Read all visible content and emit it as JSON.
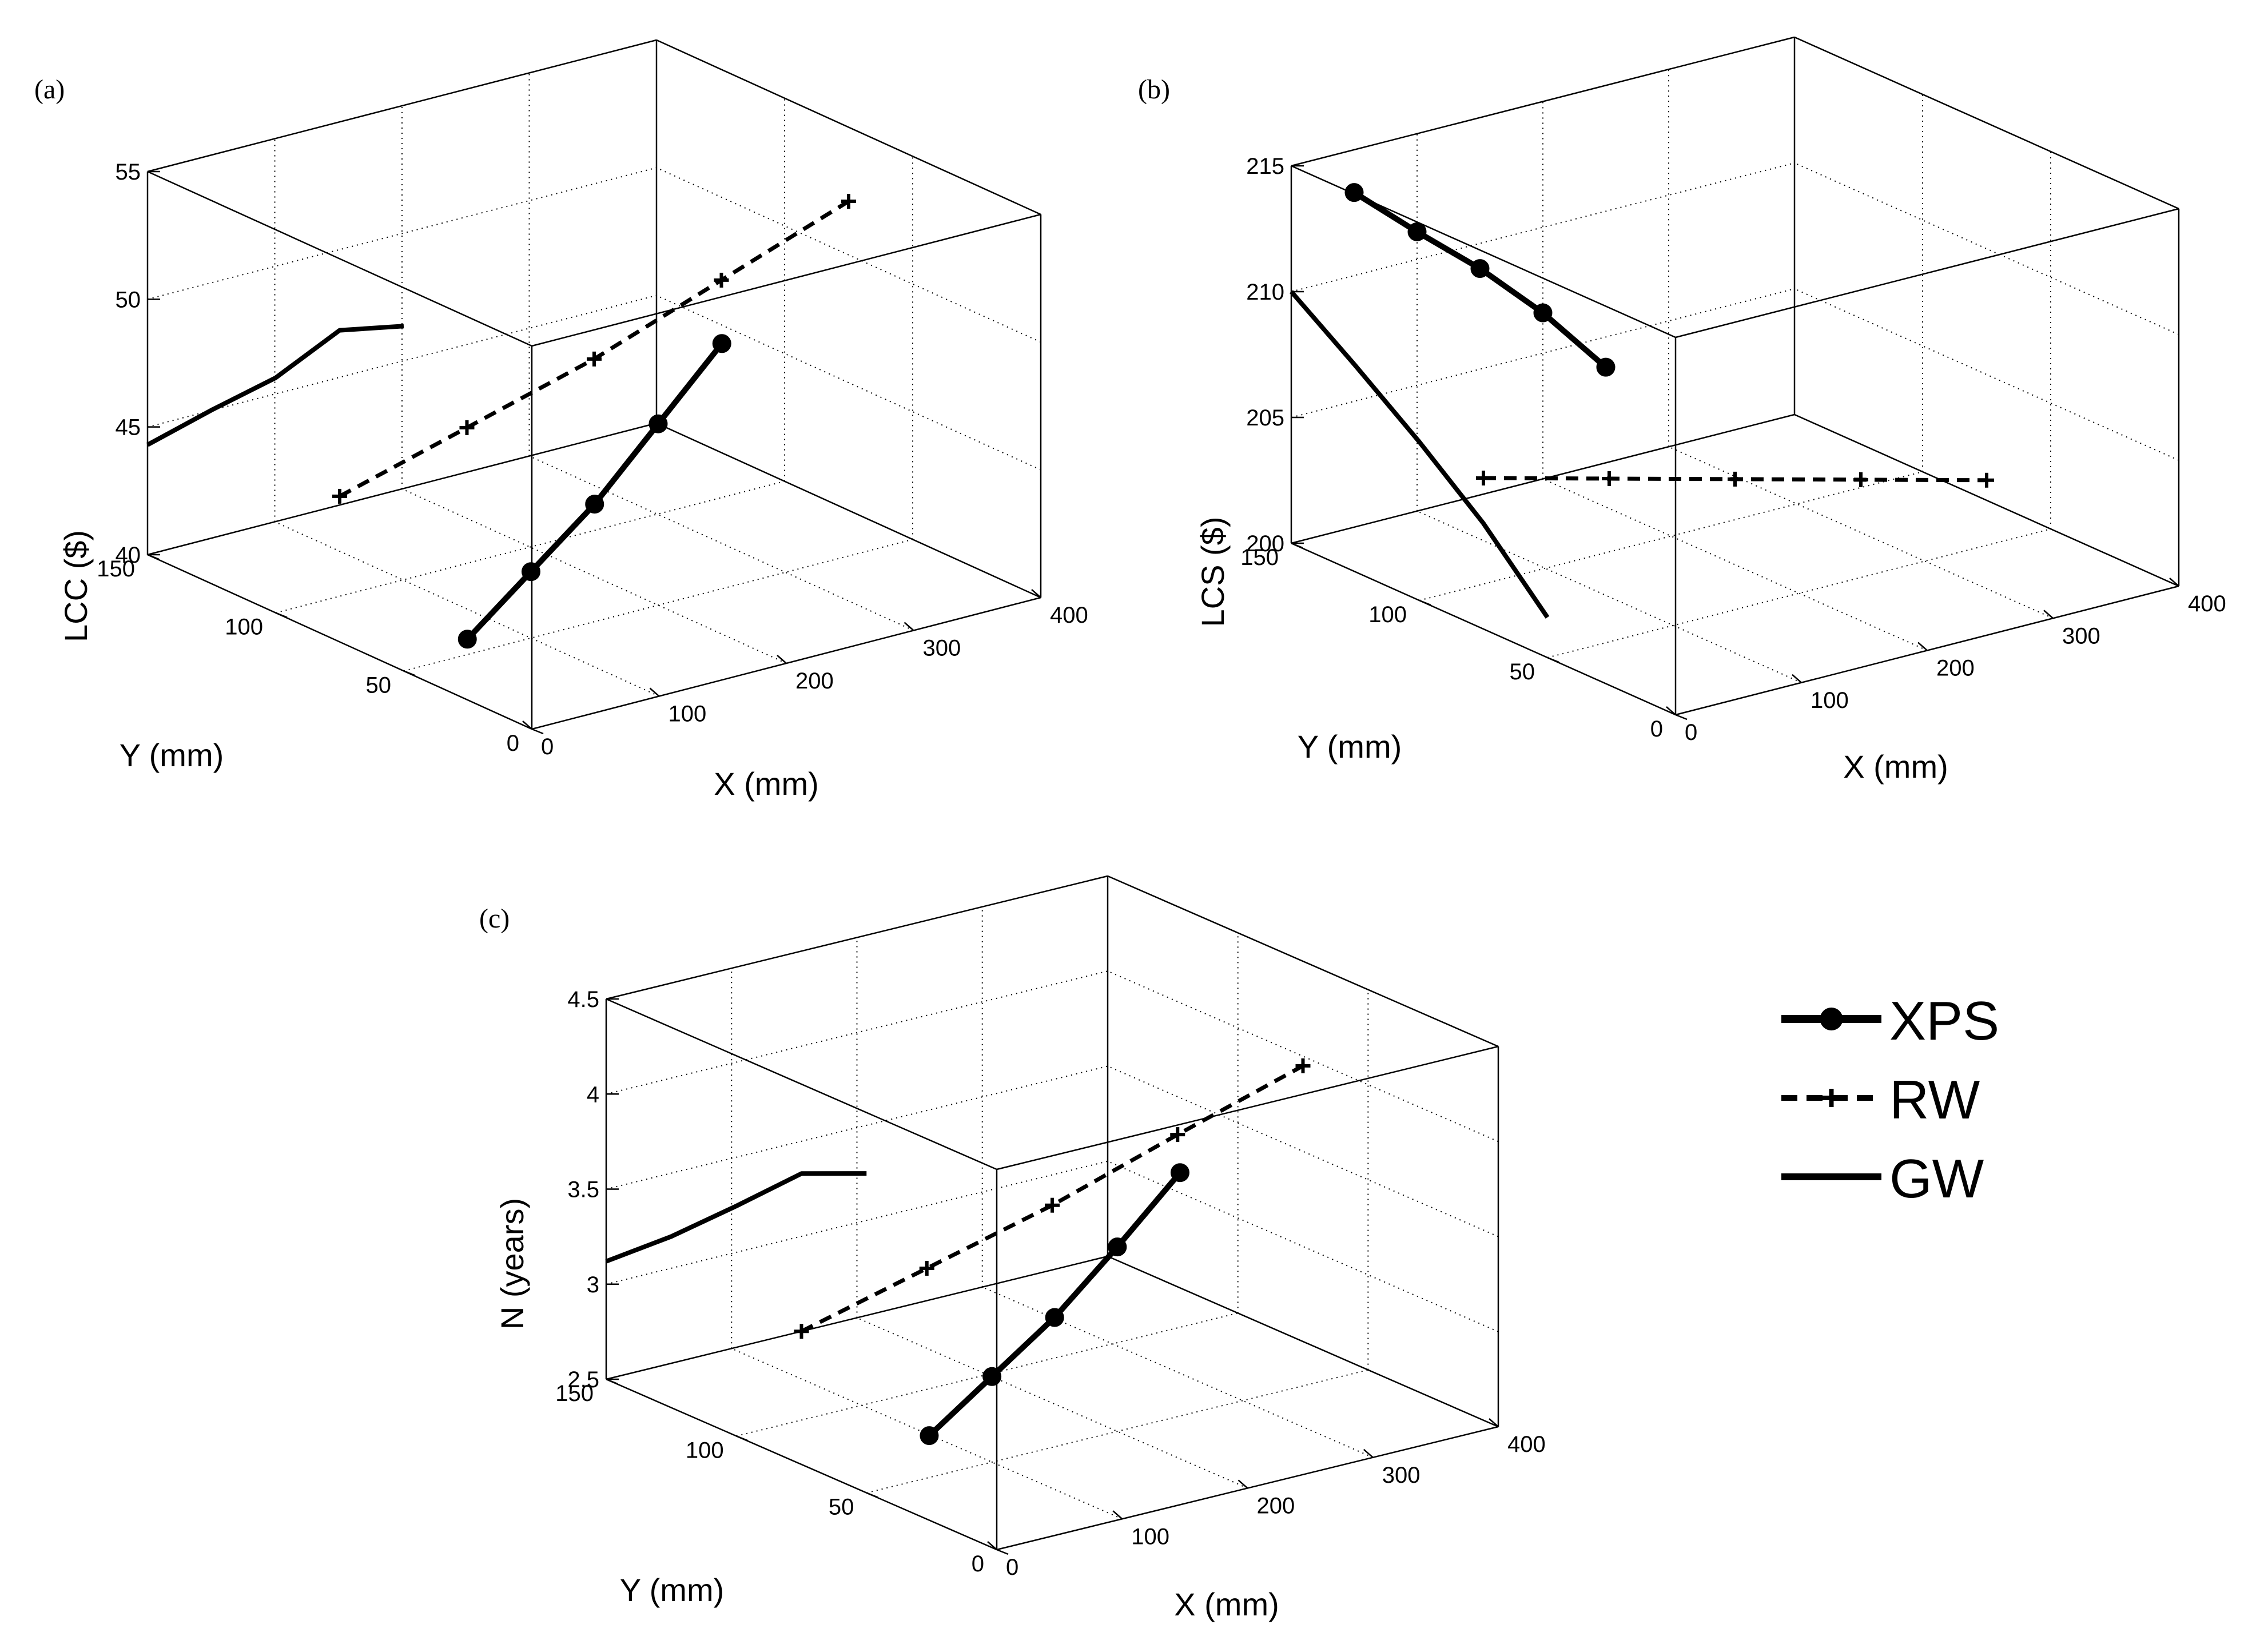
{
  "chart_data": [
    {
      "type": "line3d",
      "panel_label": "(a)",
      "xlabel": "X (mm)",
      "ylabel": "Y (mm)",
      "zlabel": "LCC ($)",
      "xlim": [
        0,
        400
      ],
      "ylim": [
        0,
        150
      ],
      "zlim": [
        40,
        55
      ],
      "xticks": [
        0,
        100,
        200,
        300,
        400
      ],
      "yticks": [
        0,
        50,
        100,
        150
      ],
      "zticks": [
        40,
        45,
        50,
        55
      ],
      "grid": true,
      "series": [
        {
          "name": "XPS",
          "style": "solid-circle",
          "points": [
            [
              50,
              50,
              40.6
            ],
            [
              100,
              50,
              42.6
            ],
            [
              150,
              50,
              44.6
            ],
            [
              200,
              50,
              47.1
            ],
            [
              250,
              50,
              49.6
            ]
          ]
        },
        {
          "name": "RW",
          "style": "dashed-plus",
          "points": [
            [
              0,
              75,
              45.7
            ],
            [
              100,
              75,
              47.1
            ],
            [
              200,
              75,
              48.5
            ],
            [
              300,
              75,
              50.3
            ],
            [
              400,
              75,
              52.1
            ]
          ]
        },
        {
          "name": "GW",
          "style": "solid",
          "points": [
            [
              0,
              150,
              44.3
            ],
            [
              0,
              125,
              46.8
            ],
            [
              0,
              100,
              49.2
            ],
            [
              0,
              75,
              52.2
            ],
            [
              0,
              50,
              53.5
            ]
          ]
        }
      ]
    },
    {
      "type": "line3d",
      "panel_label": "(b)",
      "xlabel": "X (mm)",
      "ylabel": "Y (mm)",
      "zlabel": "LCS ($)",
      "xlim": [
        0,
        400
      ],
      "ylim": [
        0,
        150
      ],
      "zlim": [
        200,
        215
      ],
      "xticks": [
        0,
        100,
        200,
        300,
        400
      ],
      "yticks": [
        0,
        50,
        100,
        150
      ],
      "zticks": [
        200,
        205,
        210,
        215
      ],
      "grid": true,
      "series": [
        {
          "name": "XPS",
          "style": "solid-circle",
          "points": [
            [
              50,
              150,
              213.3
            ],
            [
              100,
              150,
              211.1
            ],
            [
              150,
              150,
              209.0
            ],
            [
              200,
              150,
              206.6
            ],
            [
              250,
              150,
              203.8
            ]
          ]
        },
        {
          "name": "RW",
          "style": "dashed-plus",
          "points": [
            [
              0,
              75,
              206.0
            ],
            [
              100,
              75,
              204.7
            ],
            [
              200,
              75,
              203.4
            ],
            [
              300,
              75,
              202.1
            ],
            [
              400,
              75,
              200.8
            ]
          ]
        },
        {
          "name": "GW",
          "style": "solid",
          "points": [
            [
              0,
              150,
              210.0
            ],
            [
              0,
              125,
              208.2
            ],
            [
              0,
              100,
              206.3
            ],
            [
              0,
              75,
              204.2
            ],
            [
              0,
              50,
              201.6
            ]
          ]
        }
      ]
    },
    {
      "type": "line3d",
      "panel_label": "(c)",
      "xlabel": "X (mm)",
      "ylabel": "Y (mm)",
      "zlabel": "N (years)",
      "xlim": [
        0,
        400
      ],
      "ylim": [
        0,
        150
      ],
      "zlim": [
        2.5,
        4.5
      ],
      "xticks": [
        0,
        100,
        200,
        300,
        400
      ],
      "yticks": [
        0,
        50,
        100,
        150
      ],
      "zticks": [
        2.5,
        3,
        3.5,
        4,
        4.5
      ],
      "grid": true,
      "series": [
        {
          "name": "XPS",
          "style": "solid-circle",
          "points": [
            [
              50,
              50,
              2.72
            ],
            [
              100,
              50,
              2.95
            ],
            [
              150,
              50,
              3.18
            ],
            [
              200,
              50,
              3.47
            ],
            [
              250,
              50,
              3.78
            ]
          ]
        },
        {
          "name": "RW",
          "style": "dashed-plus",
          "points": [
            [
              0,
              75,
              3.2
            ],
            [
              100,
              75,
              3.37
            ],
            [
              200,
              75,
              3.54
            ],
            [
              300,
              75,
              3.75
            ],
            [
              400,
              75,
              3.95
            ]
          ]
        },
        {
          "name": "GW",
          "style": "solid",
          "points": [
            [
              0,
              150,
              3.12
            ],
            [
              0,
              125,
              3.4
            ],
            [
              0,
              100,
              3.71
            ],
            [
              0,
              75,
              4.03
            ],
            [
              0,
              50,
              4.18
            ]
          ]
        }
      ]
    }
  ],
  "legend": {
    "items": [
      {
        "label": "XPS",
        "style": "solid-circle"
      },
      {
        "label": "RW",
        "style": "dashed-plus"
      },
      {
        "label": "GW",
        "style": "solid"
      }
    ]
  }
}
